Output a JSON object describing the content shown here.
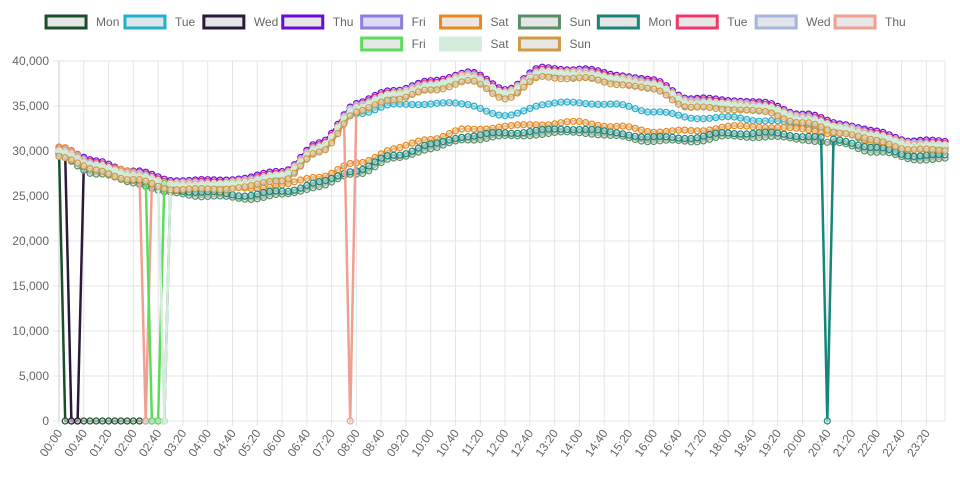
{
  "chart_data": {
    "type": "line",
    "title": "",
    "xlabel": "",
    "ylabel": "",
    "ylim": [
      0,
      40000
    ],
    "y_ticks": [
      0,
      5000,
      10000,
      15000,
      20000,
      25000,
      30000,
      35000,
      40000
    ],
    "y_tick_labels": [
      "0",
      "5,000",
      "10,000",
      "15,000",
      "20,000",
      "25,000",
      "30,000",
      "35,000",
      "40,000"
    ],
    "x_tick_labels": [
      "00:00",
      "00:40",
      "01:20",
      "02:00",
      "02:40",
      "03:20",
      "04:00",
      "04:40",
      "05:20",
      "06:00",
      "06:40",
      "07:20",
      "08:00",
      "08:40",
      "09:20",
      "10:00",
      "10:40",
      "11:20",
      "12:00",
      "12:40",
      "13:20",
      "14:00",
      "14:40",
      "15:20",
      "16:00",
      "16:40",
      "17:20",
      "18:00",
      "18:40",
      "19:20",
      "20:00",
      "20:40",
      "21:20",
      "22:00",
      "22:40",
      "23:20"
    ],
    "interval_minutes": 10,
    "points_per_series": 144,
    "legend_position": "top",
    "grid": true,
    "series": [
      {
        "name": "Mon",
        "border": "#1b4d2b",
        "fill": "#e6e6e6",
        "drops": [
          [
            1,
            17
          ]
        ],
        "profile": "weekday",
        "offset": 0
      },
      {
        "name": "Tue",
        "border": "#22b0cc",
        "fill": "#dde6ea",
        "drops": [],
        "profile": "weekday_low",
        "offset": 0
      },
      {
        "name": "Wed",
        "border": "#2a1a38",
        "fill": "#e6e6e6",
        "drops": [
          [
            2,
            3
          ]
        ],
        "profile": "weekday",
        "offset": -300
      },
      {
        "name": "Thu",
        "border": "#6a0ad8",
        "fill": "#e6e6e6",
        "drops": [],
        "profile": "weekday",
        "offset": 500
      },
      {
        "name": "Fri",
        "border": "#8b7fe0",
        "fill": "#dcdaf2",
        "drops": [],
        "profile": "weekday",
        "offset": -200
      },
      {
        "name": "Sat",
        "border": "#e68a1e",
        "fill": "#ece6e0",
        "drops": [],
        "profile": "weekend",
        "offset": 400
      },
      {
        "name": "Sun",
        "border": "#5a8f6a",
        "fill": "#e6e6e6",
        "drops": [],
        "profile": "weekend",
        "offset": -700
      },
      {
        "name": "Mon",
        "border": "#16867a",
        "fill": "#e6e6e6",
        "drops": [
          [
            124,
            124
          ]
        ],
        "profile": "weekend",
        "offset": -300
      },
      {
        "name": "Tue",
        "border": "#ee3a6a",
        "fill": "#e6e6e6",
        "drops": [],
        "profile": "weekday",
        "offset": 300
      },
      {
        "name": "Wed",
        "border": "#a7b4dd",
        "fill": "#e2e4ec",
        "drops": [],
        "profile": "weekday",
        "offset": 200
      },
      {
        "name": "Thu",
        "border": "#f0a090",
        "fill": "#e6e6e6",
        "drops": [
          [
            14,
            14
          ],
          [
            47,
            47
          ]
        ],
        "profile": "weekday",
        "offset": 100
      },
      {
        "name": "Fri",
        "border": "#5cdc5c",
        "fill": "#e6e6e6",
        "drops": [
          [
            15,
            16
          ]
        ],
        "profile": "weekday",
        "offset": -100
      },
      {
        "name": "Sat",
        "border": "#d4ecdc",
        "fill": "#d4ecdc",
        "drops": [
          [
            17,
            17
          ]
        ],
        "profile": "weekday",
        "offset": 0
      },
      {
        "name": "Sun",
        "border": "#d09a45",
        "fill": "#e6e6e6",
        "drops": [],
        "profile": "weekday",
        "offset": -500
      }
    ]
  }
}
